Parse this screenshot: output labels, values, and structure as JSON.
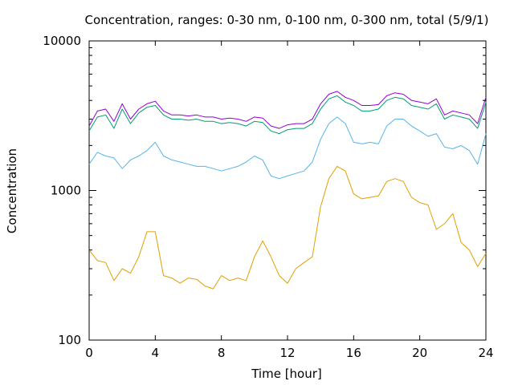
{
  "chart_data": {
    "type": "line",
    "title": "Concentration, ranges: 0-30 nm, 0-100 nm, 0-300 nm, total (5/9/1)",
    "xlabel": "Time [hour]",
    "ylabel": "Concentration",
    "xlim": [
      0,
      24
    ],
    "ylim": [
      100,
      10000
    ],
    "yscale": "log",
    "grid": false,
    "legend": "none",
    "x_ticks": [
      0,
      4,
      8,
      12,
      16,
      20,
      24
    ],
    "y_ticks": [
      100,
      1000,
      10000
    ],
    "x": [
      0,
      0.5,
      1,
      1.5,
      2,
      2.5,
      3,
      3.5,
      4,
      4.5,
      5,
      5.5,
      6,
      6.5,
      7,
      7.5,
      8,
      8.5,
      9,
      9.5,
      10,
      10.5,
      11,
      11.5,
      12,
      12.5,
      13,
      13.5,
      14,
      14.5,
      15,
      15.5,
      16,
      16.5,
      17,
      17.5,
      18,
      18.5,
      19,
      19.5,
      20,
      20.5,
      21,
      21.5,
      22,
      22.5,
      23,
      23.5,
      24
    ],
    "series": [
      {
        "color": "#e0a000",
        "values": [
          400,
          340,
          330,
          250,
          300,
          280,
          360,
          530,
          530,
          270,
          260,
          240,
          260,
          255,
          230,
          220,
          270,
          250,
          260,
          250,
          360,
          460,
          360,
          270,
          240,
          300,
          330,
          360,
          780,
          1200,
          1450,
          1350,
          950,
          880,
          900,
          920,
          1150,
          1200,
          1150,
          900,
          830,
          800,
          550,
          600,
          700,
          450,
          400,
          310,
          380
        ]
      },
      {
        "color": "#56b4e9",
        "values": [
          1500,
          1800,
          1700,
          1650,
          1400,
          1600,
          1700,
          1850,
          2100,
          1700,
          1600,
          1550,
          1500,
          1450,
          1450,
          1400,
          1350,
          1400,
          1450,
          1550,
          1700,
          1600,
          1250,
          1200,
          1250,
          1300,
          1350,
          1550,
          2200,
          2800,
          3100,
          2800,
          2100,
          2050,
          2100,
          2050,
          2700,
          3000,
          3000,
          2700,
          2500,
          2300,
          2400,
          1950,
          1900,
          2000,
          1850,
          1500,
          2400
        ]
      },
      {
        "color": "#009e73",
        "values": [
          2500,
          3100,
          3200,
          2600,
          3500,
          2800,
          3300,
          3600,
          3700,
          3200,
          3000,
          3000,
          2950,
          3000,
          2900,
          2900,
          2800,
          2850,
          2800,
          2700,
          2900,
          2850,
          2500,
          2400,
          2550,
          2600,
          2600,
          2800,
          3500,
          4100,
          4300,
          3900,
          3700,
          3400,
          3400,
          3500,
          4000,
          4200,
          4100,
          3700,
          3600,
          3500,
          3800,
          3000,
          3200,
          3100,
          3000,
          2600,
          3900
        ]
      },
      {
        "color": "#9400d3",
        "values": [
          2700,
          3400,
          3500,
          2900,
          3800,
          3000,
          3500,
          3800,
          3950,
          3400,
          3200,
          3200,
          3150,
          3200,
          3100,
          3100,
          3000,
          3050,
          3000,
          2900,
          3100,
          3050,
          2700,
          2600,
          2750,
          2800,
          2800,
          3000,
          3800,
          4400,
          4600,
          4200,
          4000,
          3700,
          3700,
          3750,
          4300,
          4500,
          4400,
          4000,
          3900,
          3800,
          4100,
          3200,
          3400,
          3300,
          3200,
          2800,
          4200
        ]
      }
    ]
  }
}
